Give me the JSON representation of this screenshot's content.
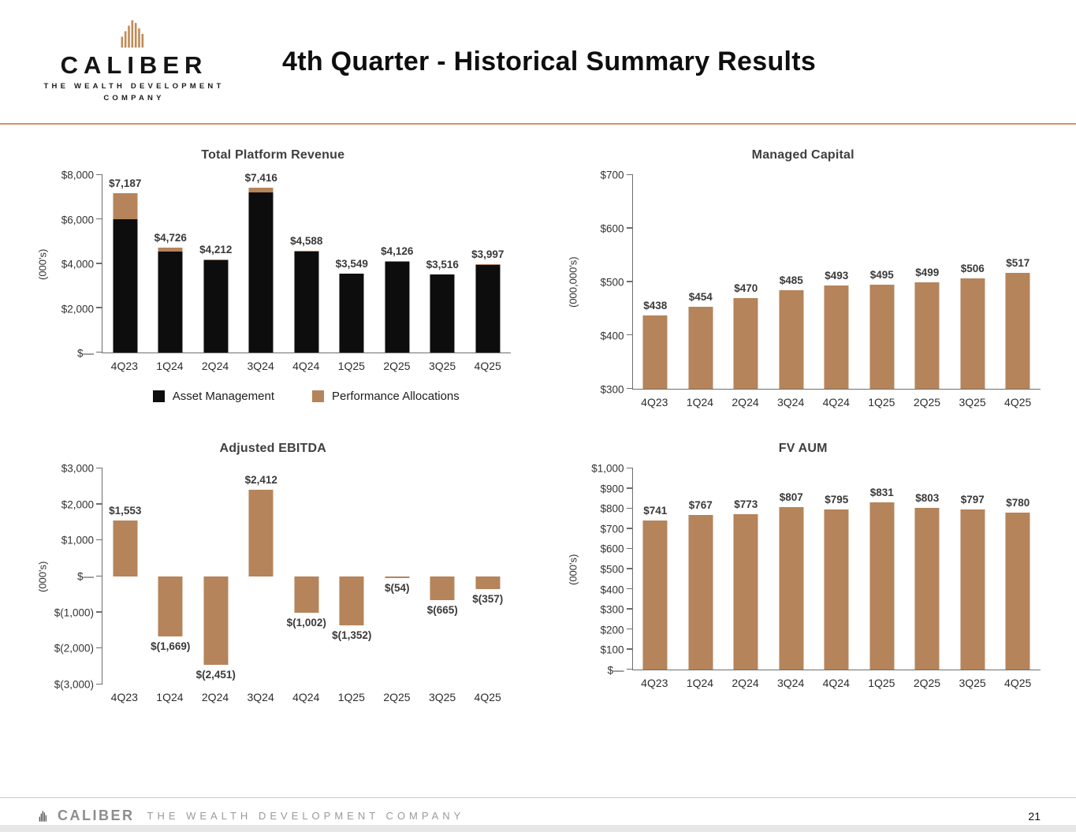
{
  "header": {
    "title": "4th Quarter - Historical Summary Results",
    "brand": {
      "name": "CALIBER",
      "tagline_line1": "THE WEALTH DEVELOPMENT",
      "tagline_line2": "COMPANY"
    }
  },
  "footer": {
    "brand": "CALIBER",
    "tagline": "THE WEALTH DEVELOPMENT COMPANY",
    "page": "21"
  },
  "colors": {
    "bar_tan": "#b5845a",
    "bar_black": "#0d0d0d",
    "divider": "#d2916b"
  },
  "chart_data": [
    {
      "id": "total-platform-revenue",
      "type": "bar",
      "stacked": true,
      "title": "Total Platform Revenue",
      "ylabel": "(000's)",
      "ymin": 0,
      "ymax": 8000,
      "yticks": [
        {
          "v": 8000,
          "label": "$8,000"
        },
        {
          "v": 6000,
          "label": "$6,000"
        },
        {
          "v": 4000,
          "label": "$4,000"
        },
        {
          "v": 2000,
          "label": "$2,000"
        },
        {
          "v": 0,
          "label": "$—"
        }
      ],
      "categories": [
        "4Q23",
        "1Q24",
        "2Q24",
        "3Q24",
        "4Q24",
        "1Q25",
        "2Q25",
        "3Q25",
        "4Q25"
      ],
      "series": [
        {
          "name": "Asset Management",
          "color": "#0d0d0d",
          "values": [
            6000,
            4550,
            4150,
            7230,
            4560,
            3549,
            4100,
            3516,
            3980
          ]
        },
        {
          "name": "Performance Allocations",
          "color": "#b5845a",
          "values": [
            1187,
            176,
            62,
            186,
            28,
            0,
            26,
            0,
            17
          ]
        }
      ],
      "labels": [
        "$7,187",
        "$4,726",
        "$4,212",
        "$7,416",
        "$4,588",
        "$3,549",
        "$4,126",
        "$3,516",
        "$3,997"
      ],
      "legend": [
        {
          "name": "Asset Management",
          "color": "#0d0d0d"
        },
        {
          "name": "Performance Allocations",
          "color": "#b5845a"
        }
      ],
      "legend_position": "bottom",
      "grid": false
    },
    {
      "id": "managed-capital",
      "type": "bar",
      "title": "Managed Capital",
      "ylabel": "(000,000's)",
      "ymin": 300,
      "ymax": 700,
      "yticks": [
        {
          "v": 700,
          "label": "$700"
        },
        {
          "v": 600,
          "label": "$600"
        },
        {
          "v": 500,
          "label": "$500"
        },
        {
          "v": 400,
          "label": "$400"
        },
        {
          "v": 300,
          "label": "$300"
        }
      ],
      "categories": [
        "4Q23",
        "1Q24",
        "2Q24",
        "3Q24",
        "4Q24",
        "1Q25",
        "2Q25",
        "3Q25",
        "4Q25"
      ],
      "values": [
        438,
        454,
        470,
        485,
        493,
        495,
        499,
        506,
        517
      ],
      "labels": [
        "$438",
        "$454",
        "$470",
        "$485",
        "$493",
        "$495",
        "$499",
        "$506",
        "$517"
      ],
      "color": "#b5845a",
      "grid": false
    },
    {
      "id": "adjusted-ebitda",
      "type": "bar",
      "title": "Adjusted EBITDA",
      "ylabel": "(000's)",
      "ymin": -3000,
      "ymax": 3000,
      "yticks": [
        {
          "v": 3000,
          "label": "$3,000"
        },
        {
          "v": 2000,
          "label": "$2,000"
        },
        {
          "v": 1000,
          "label": "$1,000"
        },
        {
          "v": 0,
          "label": "$—"
        },
        {
          "v": -1000,
          "label": "$(1,000)"
        },
        {
          "v": -2000,
          "label": "$(2,000)"
        },
        {
          "v": -3000,
          "label": "$(3,000)"
        }
      ],
      "categories": [
        "4Q23",
        "1Q24",
        "2Q24",
        "3Q24",
        "4Q24",
        "1Q25",
        "2Q25",
        "3Q25",
        "4Q25"
      ],
      "values": [
        1553,
        -1669,
        -2451,
        2412,
        -1002,
        -1352,
        -54,
        -665,
        -357
      ],
      "labels": [
        "$1,553",
        "$(1,669)",
        "$(2,451)",
        "$2,412",
        "$(1,002)",
        "$(1,352)",
        "$(54)",
        "$(665)",
        "$(357)"
      ],
      "color": "#b5845a",
      "grid": false
    },
    {
      "id": "fv-aum",
      "type": "bar",
      "title": "FV AUM",
      "ylabel": "(000's)",
      "ymin": 0,
      "ymax": 1000,
      "yticks": [
        {
          "v": 1000,
          "label": "$1,000"
        },
        {
          "v": 900,
          "label": "$900"
        },
        {
          "v": 800,
          "label": "$800"
        },
        {
          "v": 700,
          "label": "$700"
        },
        {
          "v": 600,
          "label": "$600"
        },
        {
          "v": 500,
          "label": "$500"
        },
        {
          "v": 400,
          "label": "$400"
        },
        {
          "v": 300,
          "label": "$300"
        },
        {
          "v": 200,
          "label": "$200"
        },
        {
          "v": 100,
          "label": "$100"
        },
        {
          "v": 0,
          "label": "$—"
        }
      ],
      "categories": [
        "4Q23",
        "1Q24",
        "2Q24",
        "3Q24",
        "4Q24",
        "1Q25",
        "2Q25",
        "3Q25",
        "4Q25"
      ],
      "values": [
        741,
        767,
        773,
        807,
        795,
        831,
        803,
        797,
        780
      ],
      "labels": [
        "$741",
        "$767",
        "$773",
        "$807",
        "$795",
        "$831",
        "$803",
        "$797",
        "$780"
      ],
      "color": "#b5845a",
      "grid": false
    }
  ]
}
